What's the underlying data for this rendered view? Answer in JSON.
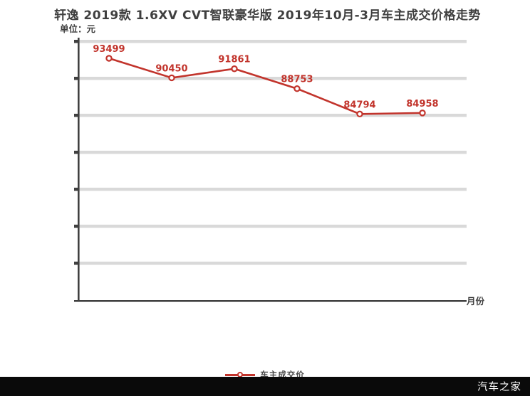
{
  "header": {
    "title": "轩逸 2019款 1.6XV CVT智联豪华版 2019年10月-3月车主成交价格走势",
    "unit_label": "单位：元"
  },
  "axes": {
    "x_label": "月份"
  },
  "legend": {
    "label": "车主成交价"
  },
  "footer": {
    "brand": "汽车之家"
  },
  "colors": {
    "series_red": "#c2342c",
    "gridline_gray": "#d9d9d9",
    "axis_dark": "#404040",
    "label_red": "#c2342c"
  },
  "chart_data": {
    "type": "line",
    "title": "轩逸 2019款 1.6XV CVT智联豪华版 2019年10月-3月车主成交价格走势",
    "unit": "单位：元",
    "xlabel": "月份",
    "grid": "horizontal",
    "legend_position": "bottom",
    "series": [
      {
        "name": "车主成交价",
        "values": [
          93499,
          90450,
          91861,
          88753,
          84794,
          84958
        ],
        "color": "#c2342c",
        "marker": "open-circle",
        "point_labels": [
          "93499",
          "90450",
          "91861",
          "88753",
          "84794",
          "84958"
        ]
      }
    ]
  }
}
